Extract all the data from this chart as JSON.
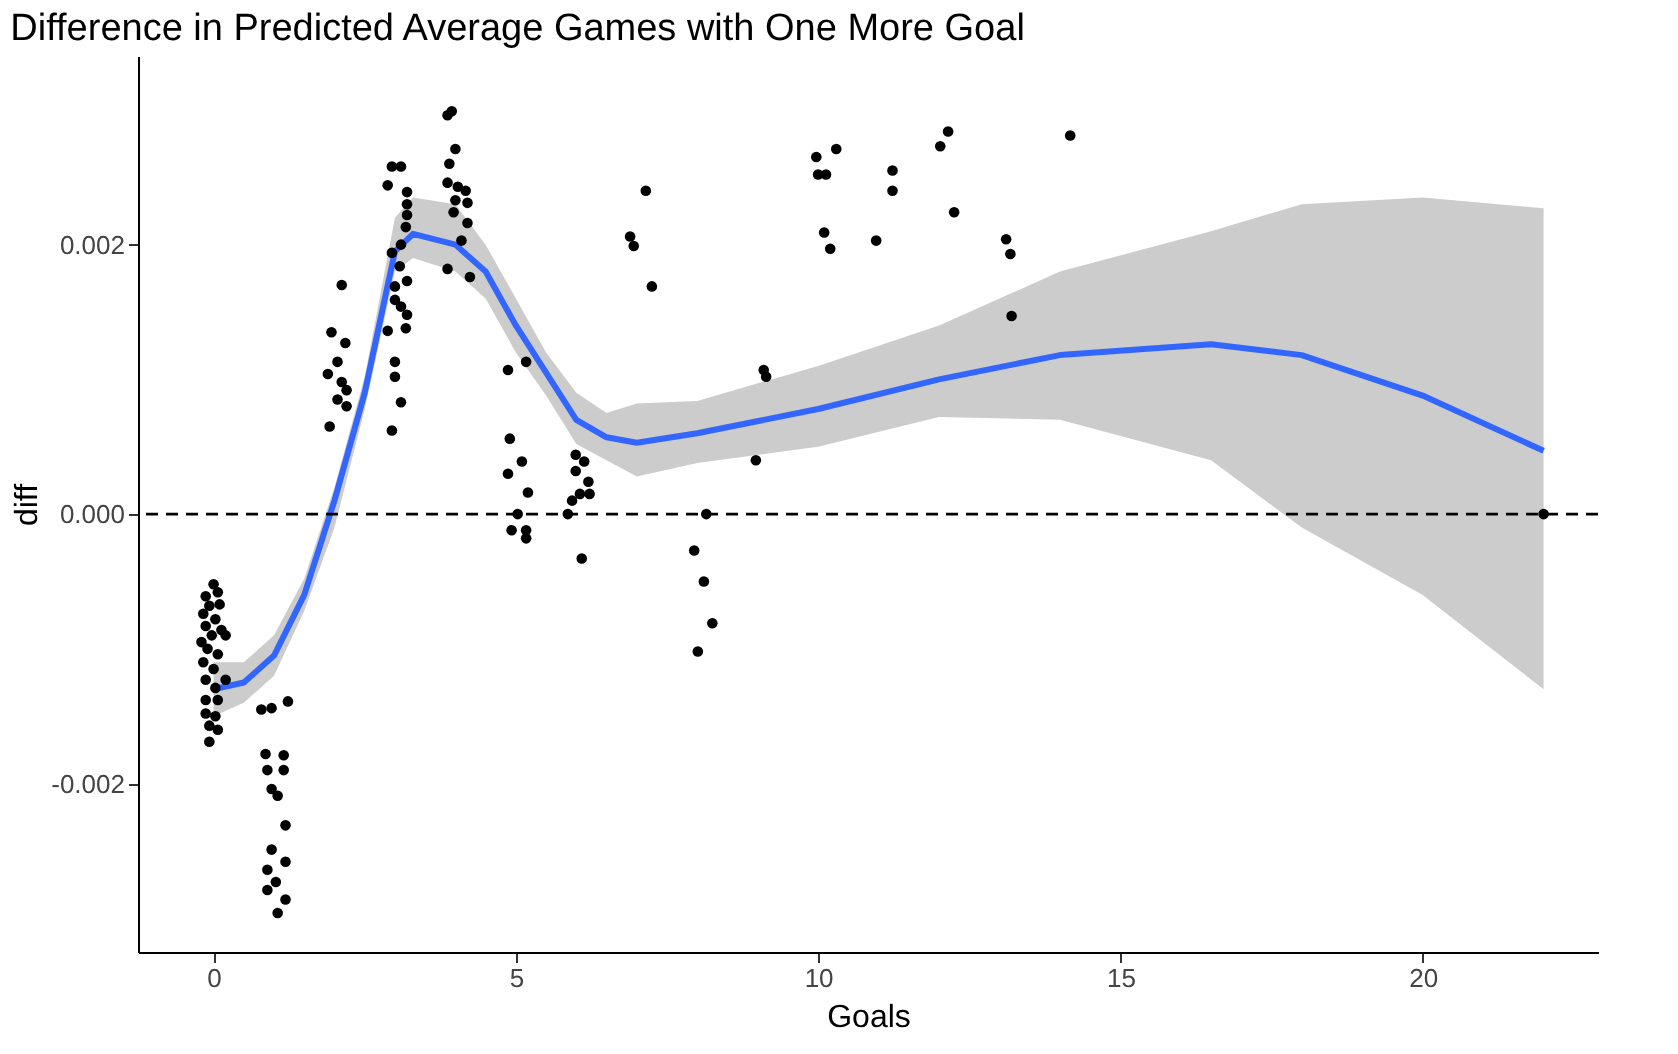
{
  "chart_data": {
    "type": "scatter",
    "title": "Difference in Predicted Average Games with One More Goal",
    "xlabel": "Goals",
    "ylabel": "diff",
    "xlim": [
      -1.25,
      22.9
    ],
    "ylim": [
      -0.00325,
      0.0034
    ],
    "xticks": [
      0,
      5,
      10,
      15,
      20
    ],
    "yticks": [
      {
        "value": -0.002,
        "label": "-0.002"
      },
      {
        "value": 0,
        "label": "0.000"
      },
      {
        "value": 0.002,
        "label": "0.002"
      }
    ],
    "marker": "circle",
    "ref_lines": [
      {
        "axis": "y",
        "value": 0,
        "line_style": "dashed",
        "color": "#000000"
      }
    ],
    "series": [
      {
        "color": "#000000",
        "x": [
          0,
          0.07,
          -0.13,
          -0.07,
          0.1,
          -0.17,
          0.03,
          -0.13,
          0.13,
          -0.03,
          0.2,
          -0.2,
          -0.1,
          0.07,
          -0.17,
          0,
          -0.13,
          0.2,
          0.03,
          -0.13,
          0.07,
          -0.13,
          0.03,
          -0.07,
          0.07,
          -0.07,
          0.79,
          0.96,
          1.23,
          0.86,
          1.16,
          0.89,
          1.16,
          0.96,
          1.06,
          1.19,
          0.96,
          1.19,
          0.89,
          1.03,
          0.89,
          1.06,
          1.19,
          2.12,
          1.95,
          2.18,
          2.05,
          1.89,
          2.12,
          2.2,
          2.05,
          2.2,
          1.92,
          2.95,
          3.1,
          2.88,
          3.2,
          3.2,
          3.2,
          3.18,
          3.1,
          2.95,
          3.08,
          3.2,
          3.0,
          3.0,
          3.1,
          3.2,
          2.88,
          3.18,
          3.0,
          3.0,
          3.1,
          2.95,
          3.94,
          3.87,
          4.0,
          3.9,
          3.87,
          4.04,
          4.17,
          4.0,
          4.2,
          3.97,
          4.2,
          4.1,
          3.87,
          4.24,
          4.87,
          5.17,
          4.9,
          5.1,
          4.87,
          5.2,
          5.03,
          4.93,
          5.17,
          5.17,
          5.99,
          6.13,
          5.99,
          6.2,
          6.22,
          6.06,
          5.93,
          5.86,
          6.09,
          6.89,
          6.95,
          7.15,
          7.25,
          8.15,
          7.95,
          8.11,
          8.01,
          8.25,
          9.1,
          9.14,
          8.97,
          9.97,
          10.3,
          10.0,
          10.13,
          10.1,
          10.2,
          11.23,
          11.23,
          10.96,
          12.02,
          12.15,
          12.25,
          13.11,
          13.18,
          13.2,
          14.17,
          22
        ],
        "values": [
          -0.00052,
          -0.00058,
          -0.00061,
          -0.00068,
          -0.00067,
          -0.00074,
          -0.00078,
          -0.00083,
          -0.00086,
          -0.0009,
          -0.0009,
          -0.00095,
          -0.001,
          -0.00104,
          -0.0011,
          -0.00115,
          -0.00123,
          -0.00123,
          -0.00129,
          -0.00138,
          -0.00138,
          -0.00148,
          -0.0015,
          -0.00157,
          -0.0016,
          -0.00169,
          -0.00145,
          -0.00144,
          -0.00139,
          -0.00178,
          -0.00179,
          -0.0019,
          -0.0019,
          -0.00204,
          -0.00209,
          -0.00231,
          -0.00249,
          -0.00258,
          -0.00264,
          -0.00273,
          -0.00279,
          -0.00296,
          -0.00286,
          0.0017,
          0.00135,
          0.00127,
          0.00113,
          0.00104,
          0.00098,
          0.00092,
          0.00085,
          0.0008,
          0.00065,
          0.00258,
          0.00258,
          0.00244,
          0.00239,
          0.0023,
          0.00222,
          0.00213,
          0.002,
          0.00194,
          0.00184,
          0.00173,
          0.00169,
          0.00159,
          0.00154,
          0.00148,
          0.00136,
          0.00138,
          0.00113,
          0.00102,
          0.00083,
          0.00062,
          0.00299,
          0.00296,
          0.00271,
          0.0026,
          0.00246,
          0.00243,
          0.0024,
          0.00233,
          0.00231,
          0.00224,
          0.00216,
          0.00203,
          0.00182,
          0.00176,
          0.00107,
          0.00113,
          0.00056,
          0.00039,
          0.0003,
          0.00016,
          0,
          -0.00012,
          -0.00012,
          -0.00018,
          0.00044,
          0.00039,
          0.00032,
          0.00024,
          0.00015,
          0.00015,
          0.0001,
          0,
          -0.00033,
          0.00206,
          0.00199,
          0.0024,
          0.00169,
          0,
          -0.00027,
          -0.0005,
          -0.00102,
          -0.00081,
          0.00107,
          0.00102,
          0.0004,
          0.00265,
          0.00271,
          0.00252,
          0.00252,
          0.00209,
          0.00197,
          0.00255,
          0.0024,
          0.00203,
          0.00273,
          0.00284,
          0.00224,
          0.00204,
          0.00193,
          0.00147,
          0.00281,
          0
        ]
      },
      {
        "type": "line",
        "color": "#3366ff",
        "x": [
          0,
          0.5,
          1,
          1.5,
          2,
          2.5,
          3,
          3.3,
          4,
          4.5,
          5,
          5.5,
          6,
          6.5,
          7,
          8,
          10,
          12,
          14,
          16.5,
          18,
          20,
          22
        ],
        "marker": "none",
        "values": [
          -0.0013,
          -0.00125,
          -0.00105,
          -0.0006,
          0.0001,
          0.0009,
          0.00195,
          0.00208,
          0.002,
          0.0018,
          0.0014,
          0.00105,
          0.0007,
          0.00057,
          0.00053,
          0.0006,
          0.00078,
          0.001,
          0.00118,
          0.00126,
          0.00118,
          0.00088,
          0.00047
        ],
        "lower": [
          -0.0015,
          -0.0014,
          -0.0012,
          -0.00072,
          -0.0001,
          0.00078,
          0.0018,
          0.0019,
          0.0018,
          0.0016,
          0.0012,
          0.00088,
          0.00052,
          0.0004,
          0.00028,
          0.00038,
          0.0005,
          0.00072,
          0.0007,
          0.0004,
          -0.0001,
          -0.0006,
          -0.0013
        ],
        "upper": [
          -0.0011,
          -0.0011,
          -0.0009,
          -0.00048,
          0.0002,
          0.00102,
          0.0022,
          0.00235,
          0.0023,
          0.002,
          0.0016,
          0.0012,
          0.0009,
          0.00075,
          0.00082,
          0.00084,
          0.0011,
          0.0014,
          0.0018,
          0.0021,
          0.0023,
          0.00235,
          0.00227
        ]
      }
    ]
  }
}
